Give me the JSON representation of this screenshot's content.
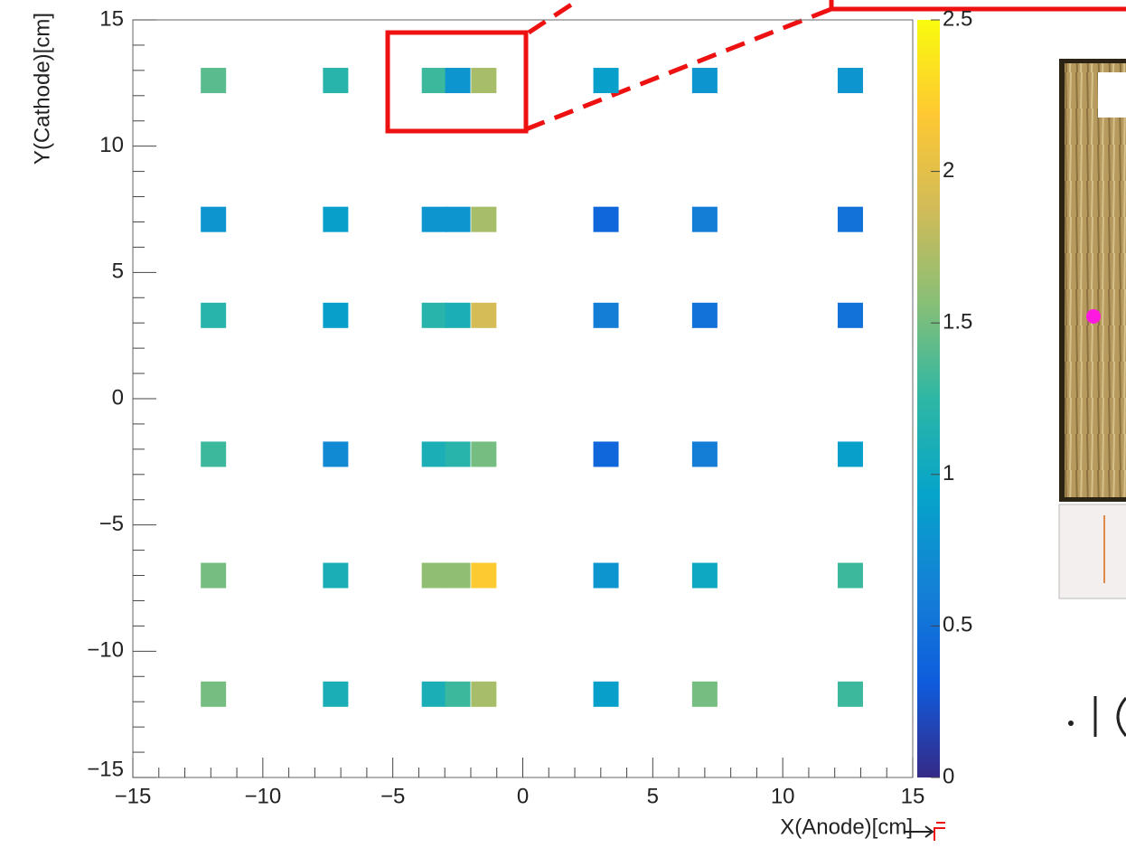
{
  "chart_data": {
    "type": "heatmap",
    "xlabel": "X(Anode)[cm]",
    "ylabel": "Y(Cathode)[cm]",
    "xlim": [
      -15,
      15
    ],
    "xticks": [
      {
        "value": -15,
        "label": "−15"
      },
      {
        "value": -10,
        "label": "−10"
      },
      {
        "value": -5,
        "label": "−5"
      },
      0,
      5,
      10,
      15
    ],
    "ylim": [
      -15,
      15
    ],
    "yticks": [
      {
        "value": -15,
        "label": "−15"
      },
      {
        "value": -10,
        "label": "−10"
      },
      {
        "value": -5,
        "label": "−5"
      },
      0,
      5,
      10,
      15
    ],
    "zlim": [
      0,
      2.5
    ],
    "zticks": [
      0,
      0.5,
      1,
      1.5,
      2,
      2.5
    ],
    "colormap": [
      "#352a87",
      "#0f5cdd",
      "#1481d6",
      "#06a4ca",
      "#2eb7a4",
      "#87bf77",
      "#d1bb59",
      "#fec832",
      "#f9fb0e"
    ],
    "x": [
      -11.9,
      -7.2,
      -3.4,
      -2.5,
      -1.5,
      3.2,
      7.0,
      12.6,
      -11.9,
      -7.2,
      -3.4,
      -2.5,
      -1.5,
      3.2,
      7.0,
      12.6,
      -11.9,
      -7.2,
      -3.4,
      -2.5,
      -1.5,
      3.2,
      7.0,
      12.6,
      -11.9,
      -7.2,
      -3.4,
      -2.5,
      -1.5,
      3.2,
      7.0,
      12.6,
      -11.9,
      -7.2,
      -3.4,
      -2.5,
      -1.5,
      3.2,
      7.0,
      12.6,
      -11.9,
      -7.2,
      -3.4,
      -2.5,
      -1.5,
      3.2,
      7.0,
      12.6
    ],
    "y": [
      12.6,
      12.6,
      12.6,
      12.6,
      12.6,
      12.6,
      12.6,
      12.6,
      7.1,
      7.1,
      7.1,
      7.1,
      7.1,
      7.1,
      7.1,
      7.1,
      3.3,
      3.3,
      3.3,
      3.3,
      3.3,
      3.3,
      3.3,
      3.3,
      -2.2,
      -2.2,
      -2.2,
      -2.2,
      -2.2,
      -2.2,
      -2.2,
      -2.2,
      -7.0,
      -7.0,
      -7.0,
      -7.0,
      -7.0,
      -7.0,
      -7.0,
      -7.0,
      -11.7,
      -11.7,
      -11.7,
      -11.7,
      -11.7,
      -11.7,
      -11.7,
      -11.7
    ],
    "values": [
      1.4,
      1.2,
      1.3,
      0.8,
      1.7,
      0.9,
      0.8,
      0.8,
      0.8,
      0.9,
      0.8,
      0.8,
      1.7,
      0.4,
      0.6,
      0.5,
      1.2,
      0.9,
      1.2,
      1.1,
      1.9,
      0.6,
      0.5,
      0.5,
      1.3,
      0.7,
      1.1,
      1.2,
      1.5,
      0.4,
      0.6,
      0.9,
      1.5,
      1.1,
      1.6,
      1.6,
      2.2,
      0.8,
      1.0,
      1.3,
      1.5,
      1.1,
      1.1,
      1.3,
      1.7,
      0.9,
      1.5,
      1.3
    ]
  }
}
